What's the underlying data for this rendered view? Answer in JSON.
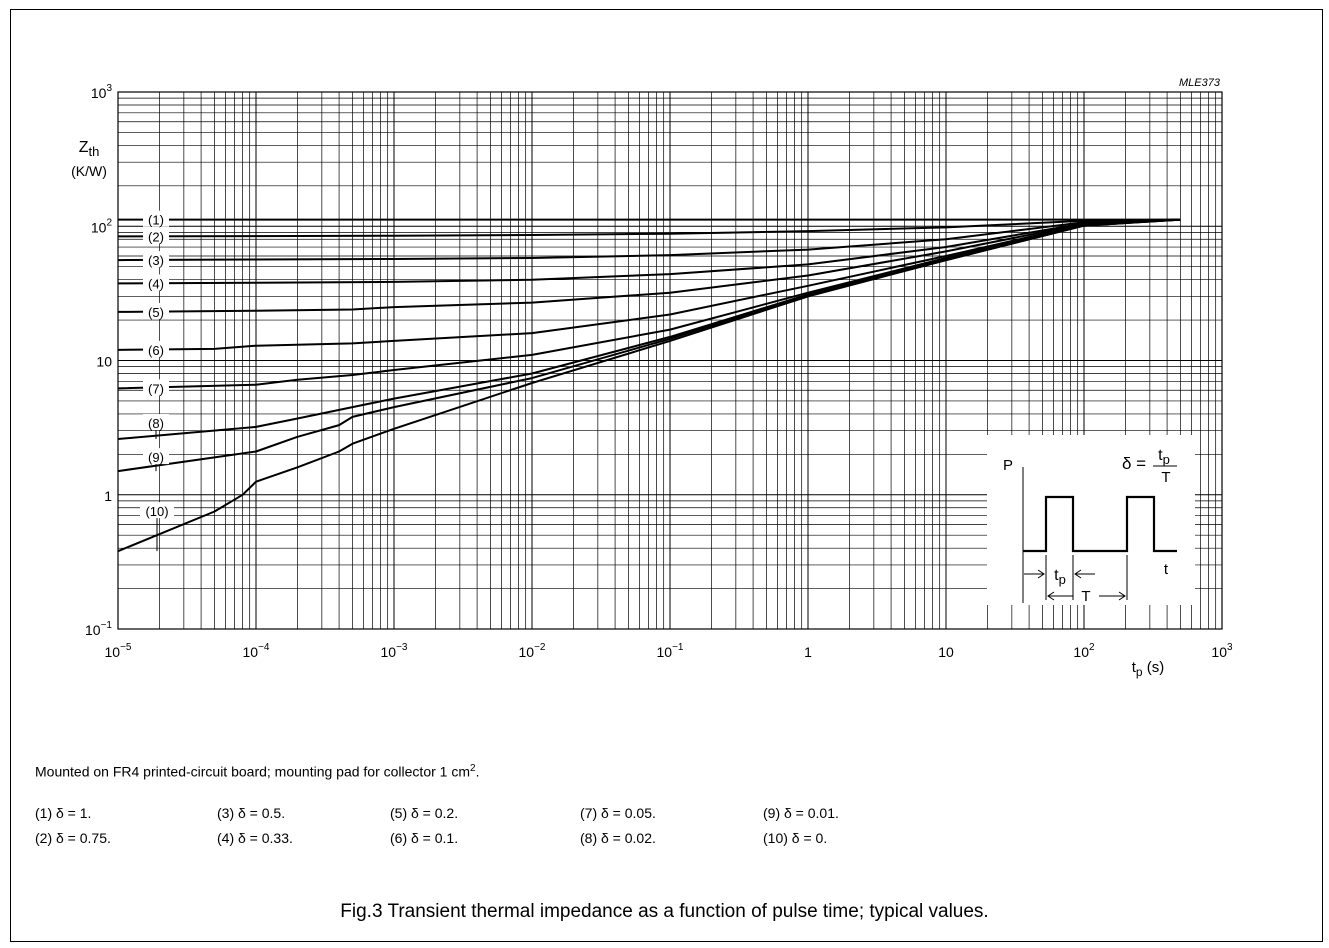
{
  "chart_data": {
    "type": "line",
    "code": "MLE373",
    "y_axis_label": [
      "Zth",
      "(K/W)"
    ],
    "x_axis_label": "tp (s)",
    "xscale": "log",
    "yscale": "log",
    "xlim": [
      1e-05,
      1000
    ],
    "ylim": [
      0.1,
      1000
    ],
    "grid": true,
    "x_ticks": [
      {
        "value": 1e-05,
        "label": "10",
        "exp": "−5"
      },
      {
        "value": 0.0001,
        "label": "10",
        "exp": "−4"
      },
      {
        "value": 0.001,
        "label": "10",
        "exp": "−3"
      },
      {
        "value": 0.01,
        "label": "10",
        "exp": "−2"
      },
      {
        "value": 0.1,
        "label": "10",
        "exp": "−1"
      },
      {
        "value": 1,
        "label": "1",
        "exp": ""
      },
      {
        "value": 10,
        "label": "10",
        "exp": ""
      },
      {
        "value": 100,
        "label": "10",
        "exp": "2"
      },
      {
        "value": 1000,
        "label": "10",
        "exp": "3"
      }
    ],
    "y_ticks": [
      {
        "value": 0.1,
        "label": "10",
        "exp": "−1"
      },
      {
        "value": 1,
        "label": "1",
        "exp": ""
      },
      {
        "value": 10,
        "label": "10",
        "exp": ""
      },
      {
        "value": 100,
        "label": "10",
        "exp": "2"
      },
      {
        "value": 1000,
        "label": "10",
        "exp": "3"
      }
    ],
    "series": [
      {
        "name": "(1)",
        "x": [
          1e-05,
          0.001,
          0.1,
          1,
          10,
          100,
          500
        ],
        "y": [
          112,
          112,
          112,
          112,
          112,
          112,
          112
        ]
      },
      {
        "name": "(2)",
        "x": [
          1e-05,
          0.0001,
          0.001,
          0.01,
          0.1,
          1,
          10,
          100,
          500
        ],
        "y": [
          84,
          84.5,
          85,
          86,
          88,
          92,
          98,
          110,
          112
        ]
      },
      {
        "name": "(3)",
        "x": [
          1e-05,
          0.0001,
          0.001,
          0.01,
          0.1,
          1,
          10,
          100,
          500
        ],
        "y": [
          56,
          56.5,
          57,
          58,
          61,
          67,
          80,
          107,
          112
        ]
      },
      {
        "name": "(4)",
        "x": [
          1e-05,
          0.0001,
          0.001,
          0.01,
          0.1,
          1,
          10,
          100,
          500
        ],
        "y": [
          37.5,
          38,
          38.5,
          40,
          44,
          52,
          70,
          105,
          112
        ]
      },
      {
        "name": "(5)",
        "x": [
          1e-05,
          0.0001,
          0.0005,
          0.001,
          0.01,
          0.1,
          1,
          10,
          100,
          500
        ],
        "y": [
          23,
          23.5,
          24,
          25,
          27,
          32,
          43,
          65,
          104,
          112
        ]
      },
      {
        "name": "(6)",
        "x": [
          1e-05,
          5e-05,
          0.0001,
          0.0005,
          0.001,
          0.01,
          0.1,
          1,
          10,
          100,
          500
        ],
        "y": [
          12,
          12.2,
          12.9,
          13.4,
          14,
          16,
          22,
          36,
          60,
          103,
          112
        ]
      },
      {
        "name": "(7)",
        "x": [
          1e-05,
          0.0001,
          0.0002,
          0.0005,
          0.001,
          0.01,
          0.1,
          1,
          10,
          100,
          500
        ],
        "y": [
          6.2,
          6.6,
          7.2,
          7.8,
          8.5,
          11,
          17,
          32,
          58,
          102,
          112
        ]
      },
      {
        "name": "(8)",
        "x": [
          1e-05,
          0.0001,
          0.0002,
          0.0005,
          0.001,
          0.01,
          0.1,
          1,
          10,
          100,
          500
        ],
        "y": [
          2.6,
          3.2,
          3.7,
          4.5,
          5.2,
          8,
          15,
          31,
          57,
          102,
          112
        ]
      },
      {
        "name": "(9)",
        "x": [
          1e-05,
          0.0001,
          0.0002,
          0.0004,
          0.0005,
          0.001,
          0.01,
          0.1,
          1,
          10,
          100,
          500
        ],
        "y": [
          1.5,
          2.1,
          2.7,
          3.3,
          3.8,
          4.5,
          7.4,
          14.5,
          30.5,
          56,
          101,
          112
        ]
      },
      {
        "name": "(10)",
        "x": [
          1e-05,
          5e-05,
          8e-05,
          0.0001,
          0.0002,
          0.0004,
          0.0005,
          0.001,
          0.01,
          0.1,
          1,
          10,
          100,
          500
        ],
        "y": [
          0.38,
          0.75,
          1.0,
          1.25,
          1.6,
          2.1,
          2.4,
          3.1,
          6.8,
          14,
          30,
          56,
          101,
          112
        ]
      }
    ],
    "inset": {
      "p_label": "P",
      "t_label": "t",
      "tp_label": "tp",
      "T_label": "T",
      "delta": "δ =",
      "frac_num": "tp",
      "frac_den": "T"
    }
  },
  "note": {
    "text": "Mounted on FR4 printed-circuit board; mounting pad for collector 1 cm",
    "sup": "2",
    "end": "."
  },
  "legend_items": [
    "(1)  δ = 1.",
    "(2)  δ = 0.75.",
    "(3)  δ = 0.5.",
    "(4)  δ = 0.33.",
    "(5)  δ = 0.2.",
    "(6)  δ = 0.1.",
    "(7)  δ = 0.05.",
    "(8)  δ = 0.02.",
    "(9)  δ = 0.01.",
    "(10) δ = 0."
  ],
  "caption": "Fig.3  Transient thermal impedance as a function of pulse time; typical values."
}
